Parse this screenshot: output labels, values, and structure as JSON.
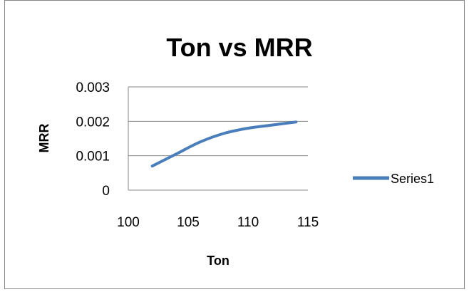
{
  "chart_data": {
    "type": "line",
    "title": "Ton vs MRR",
    "xlabel": "Ton",
    "ylabel": "MRR",
    "x": [
      102,
      104,
      106,
      108,
      110,
      112,
      114
    ],
    "series": [
      {
        "name": "Series1",
        "values": [
          0.0007,
          0.00105,
          0.0014,
          0.00165,
          0.0018,
          0.00189,
          0.00198
        ]
      }
    ],
    "xlim": [
      100,
      115
    ],
    "ylim": [
      0,
      0.003
    ],
    "xticks": [
      "100",
      "105",
      "110",
      "115"
    ],
    "xtick_values": [
      100,
      105,
      110,
      115
    ],
    "yticks": [
      "0",
      "0.001",
      "0.002",
      "0.003"
    ],
    "ytick_values": [
      0,
      0.001,
      0.002,
      0.003
    ],
    "grid": "horizontal",
    "legend_position": "right",
    "line_color": "#4a7ebb",
    "grid_color": "#868686"
  }
}
